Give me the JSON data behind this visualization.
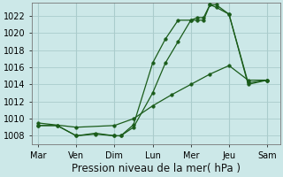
{
  "background_color": "#cce8e8",
  "grid_color": "#aacccc",
  "line_color": "#1a5c1a",
  "xlabel": "Pression niveau de la mer( hPa )",
  "xlabel_fontsize": 8.5,
  "tick_fontsize": 7,
  "ylim": [
    1007.0,
    1023.5
  ],
  "yticks": [
    1008,
    1010,
    1012,
    1014,
    1016,
    1018,
    1020,
    1022
  ],
  "x_day_labels": [
    "Mar",
    "Ven",
    "Dim",
    "Lun",
    "Mer",
    "Jeu",
    "Sam"
  ],
  "x_day_positions": [
    0,
    6,
    12,
    18,
    24,
    30,
    36
  ],
  "xlim": [
    -1,
    38
  ],
  "series1_x": [
    0,
    3,
    6,
    9,
    12,
    13,
    15,
    18,
    20,
    22,
    24,
    25,
    26,
    27,
    28,
    30,
    33,
    36
  ],
  "series1_y": [
    1009.2,
    1009.2,
    1008.0,
    1008.2,
    1008.0,
    1008.0,
    1009.3,
    1016.5,
    1019.3,
    1021.5,
    1021.5,
    1021.8,
    1021.8,
    1023.3,
    1023.3,
    1022.2,
    1014.2,
    1014.5
  ],
  "series2_x": [
    0,
    3,
    6,
    9,
    12,
    13,
    15,
    18,
    20,
    22,
    24,
    25,
    26,
    27,
    28,
    30,
    33,
    36
  ],
  "series2_y": [
    1009.2,
    1009.2,
    1008.0,
    1008.3,
    1008.0,
    1008.0,
    1009.0,
    1013.0,
    1016.5,
    1019.0,
    1021.5,
    1021.5,
    1021.5,
    1023.3,
    1023.0,
    1022.2,
    1014.0,
    1014.5
  ],
  "series3_x": [
    0,
    6,
    12,
    15,
    18,
    21,
    24,
    27,
    30,
    33,
    36
  ],
  "series3_y": [
    1009.5,
    1009.0,
    1009.2,
    1010.0,
    1011.5,
    1012.8,
    1014.0,
    1015.2,
    1016.2,
    1014.5,
    1014.5
  ]
}
